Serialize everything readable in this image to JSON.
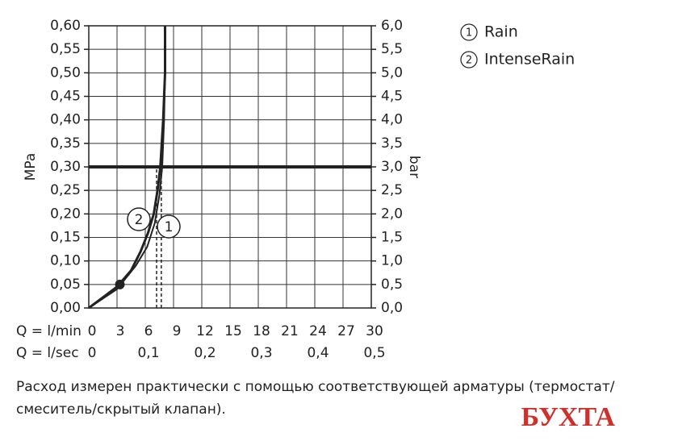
{
  "chart_data": {
    "type": "line",
    "ylabel": "MPa",
    "y2label": "bar",
    "xlabel": "Q = l/min",
    "x2label": "Q = l/sec",
    "xlim": [
      0,
      30
    ],
    "xticks": [
      0,
      3,
      6,
      9,
      12,
      15,
      18,
      21,
      24,
      27,
      30
    ],
    "x2lim": [
      0,
      0.5
    ],
    "x2ticks": [
      0,
      {
        "value": 0.1,
        "label": "0,1"
      },
      {
        "value": 0.2,
        "label": "0,2"
      },
      {
        "value": 0.3,
        "label": "0,3"
      },
      {
        "value": 0.4,
        "label": "0,4"
      },
      {
        "value": 0.5,
        "label": "0,5"
      }
    ],
    "ylim": [
      0,
      0.6
    ],
    "yticks": [
      {
        "value": 0,
        "label": "0,00"
      },
      {
        "value": 0.05,
        "label": "0,05"
      },
      {
        "value": 0.1,
        "label": "0,10"
      },
      {
        "value": 0.15,
        "label": "0,15"
      },
      {
        "value": 0.2,
        "label": "0,20"
      },
      {
        "value": 0.25,
        "label": "0,25"
      },
      {
        "value": 0.3,
        "label": "0,30"
      },
      {
        "value": 0.35,
        "label": "0,35"
      },
      {
        "value": 0.4,
        "label": "0,40"
      },
      {
        "value": 0.45,
        "label": "0,45"
      },
      {
        "value": 0.5,
        "label": "0,50"
      },
      {
        "value": 0.55,
        "label": "0,55"
      },
      {
        "value": 0.6,
        "label": "0,60"
      }
    ],
    "y2lim": [
      0,
      6
    ],
    "y2ticks": [
      {
        "value": 0,
        "label": "0,0"
      },
      {
        "value": 0.5,
        "label": "0,5"
      },
      {
        "value": 1,
        "label": "1,0"
      },
      {
        "value": 1.5,
        "label": "1,5"
      },
      {
        "value": 2,
        "label": "2,0"
      },
      {
        "value": 2.5,
        "label": "2,5"
      },
      {
        "value": 3,
        "label": "3,0"
      },
      {
        "value": 3.5,
        "label": "3,5"
      },
      {
        "value": 4,
        "label": "4,0"
      },
      {
        "value": 4.5,
        "label": "4,5"
      },
      {
        "value": 5,
        "label": "5,0"
      },
      {
        "value": 5.5,
        "label": "5,5"
      },
      {
        "value": 6,
        "label": "6,0"
      }
    ],
    "grid": true,
    "reference_y": 0.3,
    "reference_x": [
      7.2,
      7.7
    ],
    "marker_point": {
      "x": 3.3,
      "y": 0.05
    },
    "series": [
      {
        "name": "Rain",
        "marker": "1",
        "color": "#222222",
        "x": [
          0,
          3,
          5,
          6.2,
          7.0,
          7.5,
          7.8,
          8.0,
          8.1,
          8.1
        ],
        "values": [
          0,
          0.04,
          0.09,
          0.13,
          0.18,
          0.24,
          0.3,
          0.4,
          0.5,
          0.6
        ]
      },
      {
        "name": "IntenseRain",
        "marker": "2",
        "color": "#222222",
        "x": [
          0,
          3,
          4.5,
          5.5,
          6.3,
          6.9,
          7.3,
          7.6,
          7.9,
          8.1,
          8.1
        ],
        "values": [
          0,
          0.045,
          0.08,
          0.12,
          0.16,
          0.2,
          0.25,
          0.3,
          0.4,
          0.5,
          0.6
        ]
      }
    ],
    "footnote": "Расход измерен практически с помощью соответствующей арматуры (термостат/смеситель/скрытый клапан).",
    "watermark": "БУХТА"
  }
}
